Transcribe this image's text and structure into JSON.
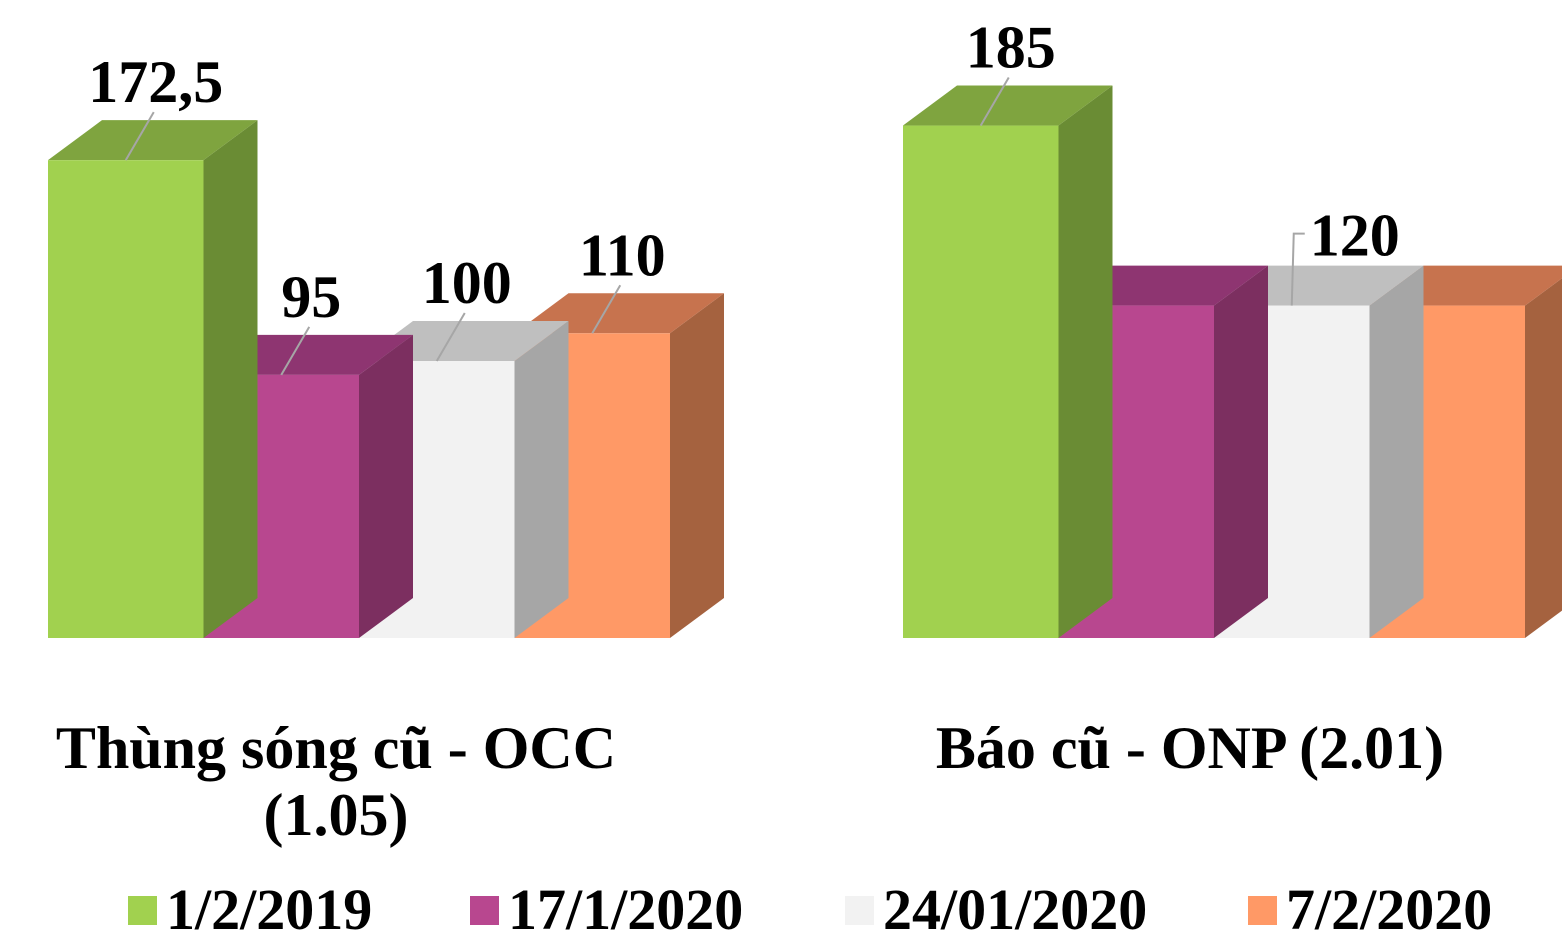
{
  "chart_data": {
    "type": "bar",
    "subtype": "3d-clustered-columns",
    "categories": [
      "Thùng sóng cũ - OCC (1.05)",
      "Báo cũ - ONP (2.01)"
    ],
    "category_lines": [
      [
        "Thùng sóng cũ - OCC",
        "(1.05)"
      ],
      [
        "Báo cũ - ONP (2.01)"
      ]
    ],
    "series": [
      {
        "name": "1/2/2019",
        "values": [
          172.5,
          185
        ],
        "color": "#a1d14f",
        "side_color": "#6a8c34",
        "top_color": "#7fa43f"
      },
      {
        "name": "17/1/2020",
        "values": [
          95,
          120
        ],
        "color": "#b8478f",
        "side_color": "#7c2f60",
        "top_color": "#8e3571"
      },
      {
        "name": "24/01/2020",
        "values": [
          100,
          120
        ],
        "color": "#f2f2f2",
        "side_color": "#a6a6a6",
        "top_color": "#bfbfbf"
      },
      {
        "name": "7/2/2020",
        "values": [
          110,
          120
        ],
        "color": "#ff9966",
        "side_color": "#a5623f",
        "top_color": "#c7734e"
      }
    ],
    "data_labels": [
      [
        "172,5",
        "95",
        "100",
        "110"
      ],
      [
        "185",
        "",
        "120",
        ""
      ]
    ],
    "legend_position": "bottom",
    "grid": false,
    "ylim": [
      0,
      185
    ]
  }
}
